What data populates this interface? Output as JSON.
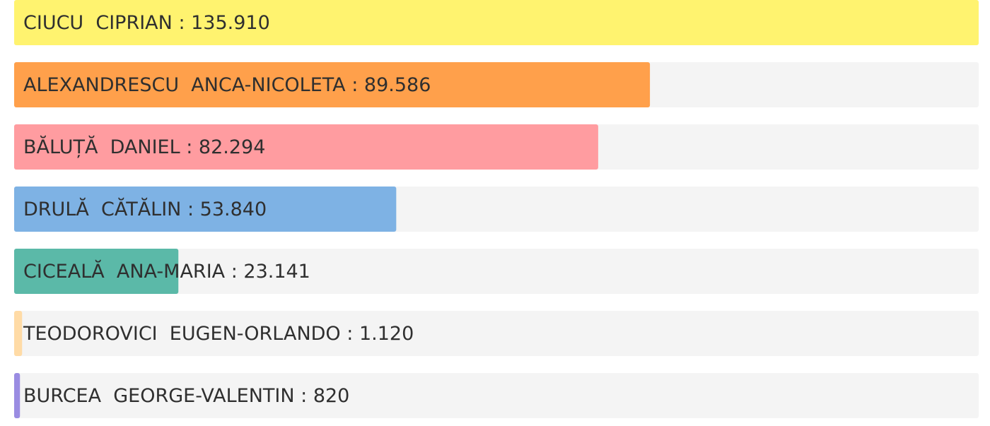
{
  "chart_data": {
    "type": "bar",
    "orientation": "horizontal",
    "categories": [
      "CIUCU  CIPRIAN",
      "ALEXANDRESCU  ANCA-NICOLETA",
      "BĂLUȚĂ  DANIEL",
      "DRULĂ  CĂTĂLIN",
      "CICEALĂ  ANA-MARIA",
      "TEODOROVICI  EUGEN-ORLANDO",
      "BURCEA  GEORGE-VALENTIN"
    ],
    "values": [
      135910,
      89586,
      82294,
      53840,
      23141,
      1120,
      820
    ],
    "value_labels": [
      "135.910",
      "89.586",
      "82.294",
      "53.840",
      "23.141",
      "1.120",
      "820"
    ],
    "label_separator": " : ",
    "colors": [
      "#fff36f",
      "#ffa04b",
      "#ff9ca0",
      "#7eb2e4",
      "#5bb9a8",
      "#ffdba6",
      "#9a8ce2"
    ],
    "xlim": [
      0,
      135910
    ]
  }
}
